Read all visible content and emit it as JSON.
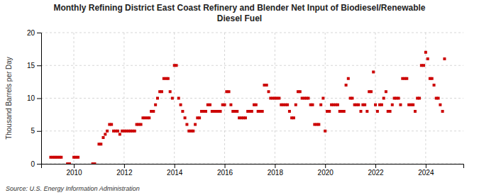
{
  "chart_data": {
    "type": "scatter",
    "title": "Monthly Refining District East Coast Refinery and Blender Net Input of Biodiesel/Renewable\nDiesel Fuel",
    "y_label": "Thousand Barrels per Day",
    "annotations": [
      "Source: U.S. Energy Information Administration"
    ],
    "color": "#cc0000",
    "marker": "square",
    "grid": true,
    "xlim": [
      2008.7,
      2025.5
    ],
    "ylim": [
      0,
      20
    ],
    "xticks": [
      2010,
      2012,
      2014,
      2016,
      2018,
      2020,
      2022,
      2024
    ],
    "yticks": [
      0,
      5,
      10,
      15,
      20
    ],
    "x": [
      2009.08,
      2009.17,
      2009.25,
      2009.33,
      2009.42,
      2009.5,
      2009.75,
      2009.83,
      2010.0,
      2010.08,
      2010.17,
      2010.75,
      2010.83,
      2011.0,
      2011.08,
      2011.17,
      2011.25,
      2011.33,
      2011.42,
      2011.5,
      2011.58,
      2011.67,
      2011.75,
      2011.83,
      2011.92,
      2012.0,
      2012.08,
      2012.17,
      2012.25,
      2012.33,
      2012.42,
      2012.5,
      2012.58,
      2012.67,
      2012.75,
      2012.83,
      2012.92,
      2013.0,
      2013.08,
      2013.17,
      2013.25,
      2013.33,
      2013.42,
      2013.5,
      2013.58,
      2013.67,
      2013.75,
      2013.83,
      2013.92,
      2014.0,
      2014.08,
      2014.17,
      2014.25,
      2014.33,
      2014.42,
      2014.5,
      2014.58,
      2014.67,
      2014.75,
      2014.83,
      2014.92,
      2015.0,
      2015.08,
      2015.17,
      2015.25,
      2015.33,
      2015.42,
      2015.5,
      2015.58,
      2015.67,
      2015.75,
      2015.83,
      2015.92,
      2016.0,
      2016.08,
      2016.17,
      2016.25,
      2016.33,
      2016.42,
      2016.5,
      2016.58,
      2016.67,
      2016.75,
      2016.83,
      2016.92,
      2017.0,
      2017.08,
      2017.17,
      2017.25,
      2017.33,
      2017.42,
      2017.5,
      2017.58,
      2017.67,
      2017.75,
      2017.83,
      2017.92,
      2018.0,
      2018.08,
      2018.17,
      2018.25,
      2018.33,
      2018.42,
      2018.5,
      2018.58,
      2018.67,
      2018.75,
      2018.83,
      2018.92,
      2019.0,
      2019.08,
      2019.17,
      2019.25,
      2019.33,
      2019.42,
      2019.5,
      2019.58,
      2019.67,
      2019.75,
      2019.83,
      2019.92,
      2020.0,
      2020.08,
      2020.17,
      2020.25,
      2020.33,
      2020.42,
      2020.5,
      2020.58,
      2020.67,
      2020.75,
      2020.83,
      2020.92,
      2021.0,
      2021.08,
      2021.17,
      2021.25,
      2021.33,
      2021.42,
      2021.5,
      2021.58,
      2021.67,
      2021.75,
      2021.83,
      2021.92,
      2022.0,
      2022.08,
      2022.17,
      2022.25,
      2022.33,
      2022.42,
      2022.5,
      2022.58,
      2022.67,
      2022.75,
      2022.83,
      2022.92,
      2023.0,
      2023.08,
      2023.17,
      2023.25,
      2023.33,
      2023.42,
      2023.5,
      2023.58,
      2023.67,
      2023.75,
      2023.83,
      2023.92,
      2024.0,
      2024.08,
      2024.17,
      2024.25,
      2024.33,
      2024.42,
      2024.5,
      2024.58,
      2024.67,
      2024.75
    ],
    "values": [
      1.0,
      1.0,
      1.0,
      1.0,
      1.0,
      1.0,
      0.0,
      0.0,
      1.0,
      1.0,
      1.0,
      0.0,
      0.0,
      3.0,
      3.0,
      4.0,
      4.5,
      5.0,
      6.0,
      6.0,
      5.0,
      5.0,
      5.0,
      4.5,
      5.0,
      5.0,
      5.0,
      5.0,
      5.0,
      5.0,
      5.0,
      6.0,
      6.0,
      6.0,
      7.0,
      7.0,
      7.0,
      7.0,
      8.0,
      8.0,
      9.0,
      10.0,
      11.0,
      11.0,
      13.0,
      13.0,
      13.0,
      11.0,
      10.0,
      15.0,
      15.0,
      10.0,
      9.0,
      8.0,
      7.0,
      6.0,
      5.0,
      5.0,
      5.0,
      6.0,
      7.0,
      7.0,
      8.0,
      8.0,
      8.0,
      9.0,
      9.0,
      8.0,
      8.0,
      8.0,
      8.0,
      8.0,
      9.0,
      9.0,
      11.0,
      11.0,
      9.0,
      8.0,
      8.0,
      8.0,
      7.0,
      7.0,
      7.0,
      7.0,
      8.0,
      8.0,
      8.0,
      9.0,
      9.0,
      8.0,
      8.0,
      8.0,
      12.0,
      12.0,
      11.0,
      10.0,
      10.0,
      10.0,
      10.0,
      10.0,
      9.0,
      9.0,
      9.0,
      9.0,
      8.0,
      7.0,
      7.0,
      9.0,
      11.0,
      11.0,
      10.0,
      10.0,
      10.0,
      10.0,
      9.0,
      9.0,
      6.0,
      6.0,
      6.0,
      9.0,
      10.0,
      5.0,
      8.0,
      8.0,
      9.0,
      9.0,
      9.0,
      9.0,
      8.0,
      8.0,
      8.0,
      12.0,
      13.0,
      10.0,
      10.0,
      9.0,
      9.0,
      9.0,
      8.0,
      9.0,
      9.0,
      8.0,
      11.0,
      11.0,
      14.0,
      9.0,
      8.0,
      9.0,
      9.0,
      10.0,
      11.0,
      8.0,
      8.0,
      9.0,
      10.0,
      10.0,
      10.0,
      9.0,
      13.0,
      13.0,
      13.0,
      9.0,
      9.0,
      9.0,
      8.0,
      10.0,
      10.0,
      15.0,
      15.0,
      17.0,
      16.0,
      13.0,
      13.0,
      12.0,
      10.0,
      10.0,
      9.0,
      8.0,
      16.0
    ]
  }
}
